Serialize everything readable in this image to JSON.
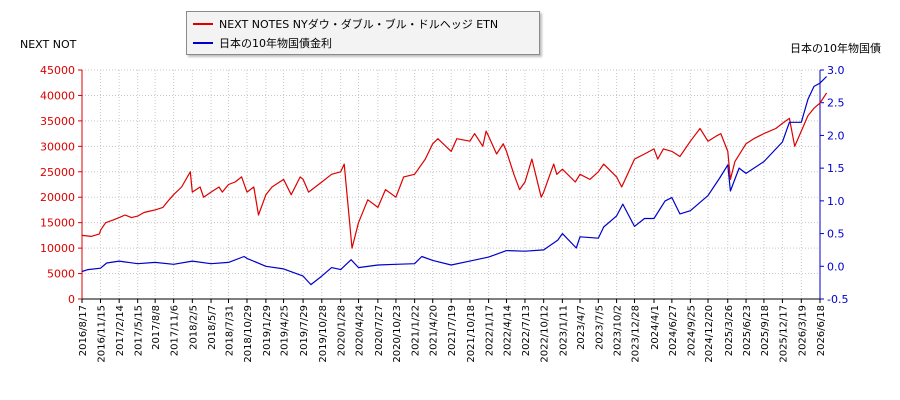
{
  "chart_data": {
    "type": "line",
    "left_axis_title": "NEXT NOT",
    "right_axis_title": "日本の10年物国債",
    "y_left": {
      "min": 0,
      "max": 45000,
      "ticks": [
        0,
        5000,
        10000,
        15000,
        20000,
        25000,
        30000,
        35000,
        40000,
        45000
      ]
    },
    "y_right": {
      "min": -0.5,
      "max": 3.0,
      "ticks": [
        "-0.5",
        "0.0",
        "0.5",
        "1.0",
        "1.5",
        "2.0",
        "2.5",
        "3.0"
      ]
    },
    "x_ticks": [
      "2016/8/17",
      "2016/11/15",
      "2017/2/14",
      "2017/5/15",
      "2017/8/8",
      "2017/11/6",
      "2018/2/5",
      "2018/5/7",
      "2018/7/31",
      "2018/10/29",
      "2019/1/29",
      "2019/4/25",
      "2019/7/29",
      "2019/10/28",
      "2020/1/28",
      "2020/4/24",
      "2020/7/27",
      "2020/10/23",
      "2021/1/22",
      "2021/4/20",
      "2021/7/19",
      "2021/10/18",
      "2022/1/17",
      "2022/4/14",
      "2022/7/13",
      "2022/10/12",
      "2023/1/11",
      "2023/4/7",
      "2023/7/5",
      "2023/10/2",
      "2023/12/28",
      "2024/4/1",
      "2024/6/27",
      "2024/9/25",
      "2024/12/20",
      "2025/3/26",
      "2025/6/23",
      "2025/9/18",
      "2025/12/17",
      "2026/3/19",
      "2026/6/18"
    ],
    "legend": [
      {
        "name": "NEXT NOTES NYダウ・ダブル・ブル・ドルヘッジ ETN",
        "color": "#dd0000"
      },
      {
        "name": "日本の10年物国債金利",
        "color": "#0000cc"
      }
    ],
    "series": [
      {
        "name": "NEXT NOTES NYダウ・ダブル・ブル・ドルヘッジ ETN",
        "axis": "left",
        "color": "#dd0000",
        "points": [
          [
            "2016/8/17",
            12500
          ],
          [
            "2016/10/1",
            12300
          ],
          [
            "2016/11/10",
            12800
          ],
          [
            "2016/11/15",
            13500
          ],
          [
            "2016/12/10",
            15000
          ],
          [
            "2017/1/15",
            15500
          ],
          [
            "2017/2/14",
            16000
          ],
          [
            "2017/3/15",
            16500
          ],
          [
            "2017/4/15",
            16000
          ],
          [
            "2017/5/15",
            16300
          ],
          [
            "2017/6/15",
            17000
          ],
          [
            "2017/7/15",
            17300
          ],
          [
            "2017/8/8",
            17500
          ],
          [
            "2017/9/15",
            18000
          ],
          [
            "2017/10/15",
            19500
          ],
          [
            "2017/11/6",
            20500
          ],
          [
            "2017/12/15",
            22000
          ],
          [
            "2018/1/26",
            25000
          ],
          [
            "2018/2/5",
            21000
          ],
          [
            "2018/3/15",
            22000
          ],
          [
            "2018/4/1",
            20000
          ],
          [
            "2018/5/7",
            21000
          ],
          [
            "2018/6/15",
            22000
          ],
          [
            "2018/7/1",
            21000
          ],
          [
            "2018/7/31",
            22500
          ],
          [
            "2018/9/1",
            23000
          ],
          [
            "2018/10/3",
            24000
          ],
          [
            "2018/10/29",
            21000
          ],
          [
            "2018/12/1",
            22000
          ],
          [
            "2018/12/24",
            16500
          ],
          [
            "2019/1/29",
            20500
          ],
          [
            "2019/2/28",
            22000
          ],
          [
            "2019/4/25",
            23500
          ],
          [
            "2019/6/1",
            20500
          ],
          [
            "2019/7/15",
            24000
          ],
          [
            "2019/7/29",
            23500
          ],
          [
            "2019/8/25",
            21000
          ],
          [
            "2019/10/28",
            23000
          ],
          [
            "2019/12/15",
            24500
          ],
          [
            "2020/1/28",
            25000
          ],
          [
            "2020/2/14",
            26500
          ],
          [
            "2020/3/23",
            10000
          ],
          [
            "2020/4/24",
            15000
          ],
          [
            "2020/6/8",
            19500
          ],
          [
            "2020/7/27",
            18000
          ],
          [
            "2020/9/2",
            21500
          ],
          [
            "2020/10/23",
            20000
          ],
          [
            "2020/11/30",
            24000
          ],
          [
            "2021/1/22",
            24500
          ],
          [
            "2021/3/15",
            27500
          ],
          [
            "2021/4/20",
            30500
          ],
          [
            "2021/5/15",
            31500
          ],
          [
            "2021/7/19",
            29000
          ],
          [
            "2021/8/15",
            31500
          ],
          [
            "2021/10/18",
            31000
          ],
          [
            "2021/11/10",
            32500
          ],
          [
            "2021/12/20",
            30000
          ],
          [
            "2022/1/5",
            33000
          ],
          [
            "2022/1/17",
            32000
          ],
          [
            "2022/2/25",
            28500
          ],
          [
            "2022/3/29",
            30500
          ],
          [
            "2022/4/14",
            29000
          ],
          [
            "2022/5/20",
            24500
          ],
          [
            "2022/6/17",
            21500
          ],
          [
            "2022/7/13",
            23000
          ],
          [
            "2022/8/16",
            27500
          ],
          [
            "2022/9/30",
            20000
          ],
          [
            "2022/10/12",
            21000
          ],
          [
            "2022/11/30",
            26500
          ],
          [
            "2022/12/15",
            24500
          ],
          [
            "2023/1/11",
            25500
          ],
          [
            "2023/3/15",
            23000
          ],
          [
            "2023/4/7",
            24500
          ],
          [
            "2023/5/25",
            23500
          ],
          [
            "2023/7/5",
            25000
          ],
          [
            "2023/7/31",
            26500
          ],
          [
            "2023/10/2",
            24000
          ],
          [
            "2023/10/27",
            22000
          ],
          [
            "2023/12/28",
            27500
          ],
          [
            "2024/2/15",
            28500
          ],
          [
            "2024/4/1",
            29500
          ],
          [
            "2024/4/19",
            27500
          ],
          [
            "2024/5/17",
            29500
          ],
          [
            "2024/6/27",
            29000
          ],
          [
            "2024/8/5",
            28000
          ],
          [
            "2024/9/25",
            31000
          ],
          [
            "2024/11/11",
            33500
          ],
          [
            "2024/12/20",
            31000
          ],
          [
            "2025/1/28",
            32000
          ],
          [
            "2025/2/20",
            32500
          ],
          [
            "2025/3/26",
            29000
          ],
          [
            "2025/4/8",
            23500
          ],
          [
            "2025/4/30",
            27000
          ],
          [
            "2025/6/23",
            30500
          ],
          [
            "2025/7/31",
            31500
          ],
          [
            "2025/9/18",
            32500
          ],
          [
            "2025/11/15",
            33500
          ],
          [
            "2025/12/17",
            34500
          ],
          [
            "2026/1/20",
            35500
          ],
          [
            "2026/2/15",
            30000
          ],
          [
            "2026/3/19",
            33000
          ],
          [
            "2026/4/20",
            36000
          ],
          [
            "2026/5/20",
            37500
          ],
          [
            "2026/6/18",
            38500
          ],
          [
            "2026/7/20",
            40500
          ]
        ]
      },
      {
        "name": "日本の10年物国債金利",
        "axis": "right",
        "color": "#0000cc",
        "points": [
          [
            "2016/8/17",
            -0.08
          ],
          [
            "2016/9/15",
            -0.05
          ],
          [
            "2016/11/15",
            -0.03
          ],
          [
            "2016/12/15",
            0.05
          ],
          [
            "2017/2/14",
            0.08
          ],
          [
            "2017/5/15",
            0.04
          ],
          [
            "2017/8/8",
            0.06
          ],
          [
            "2017/11/6",
            0.03
          ],
          [
            "2018/2/5",
            0.08
          ],
          [
            "2018/5/7",
            0.04
          ],
          [
            "2018/7/31",
            0.06
          ],
          [
            "2018/10/15",
            0.15
          ],
          [
            "2018/10/29",
            0.12
          ],
          [
            "2019/1/29",
            0.0
          ],
          [
            "2019/4/25",
            -0.04
          ],
          [
            "2019/7/29",
            -0.15
          ],
          [
            "2019/9/5",
            -0.28
          ],
          [
            "2019/10/28",
            -0.15
          ],
          [
            "2019/12/15",
            -0.02
          ],
          [
            "2020/1/28",
            -0.05
          ],
          [
            "2020/3/19",
            0.1
          ],
          [
            "2020/4/24",
            -0.02
          ],
          [
            "2020/7/27",
            0.02
          ],
          [
            "2020/10/23",
            0.03
          ],
          [
            "2021/1/22",
            0.04
          ],
          [
            "2021/2/26",
            0.15
          ],
          [
            "2021/4/20",
            0.09
          ],
          [
            "2021/7/19",
            0.02
          ],
          [
            "2021/10/18",
            0.08
          ],
          [
            "2022/1/17",
            0.14
          ],
          [
            "2022/4/14",
            0.24
          ],
          [
            "2022/7/13",
            0.23
          ],
          [
            "2022/10/12",
            0.25
          ],
          [
            "2022/12/20",
            0.4
          ],
          [
            "2023/1/11",
            0.5
          ],
          [
            "2023/3/20",
            0.28
          ],
          [
            "2023/4/7",
            0.45
          ],
          [
            "2023/7/5",
            0.43
          ],
          [
            "2023/7/31",
            0.6
          ],
          [
            "2023/10/2",
            0.77
          ],
          [
            "2023/11/1",
            0.95
          ],
          [
            "2023/12/28",
            0.61
          ],
          [
            "2024/2/15",
            0.73
          ],
          [
            "2024/4/1",
            0.73
          ],
          [
            "2024/5/25",
            1.0
          ],
          [
            "2024/6/27",
            1.05
          ],
          [
            "2024/8/5",
            0.8
          ],
          [
            "2024/9/25",
            0.85
          ],
          [
            "2024/12/20",
            1.08
          ],
          [
            "2025/2/15",
            1.35
          ],
          [
            "2025/3/26",
            1.55
          ],
          [
            "2025/4/8",
            1.15
          ],
          [
            "2025/5/20",
            1.5
          ],
          [
            "2025/6/23",
            1.42
          ],
          [
            "2025/9/18",
            1.6
          ],
          [
            "2025/12/17",
            1.9
          ],
          [
            "2026/1/20",
            2.2
          ],
          [
            "2026/3/19",
            2.2
          ],
          [
            "2026/4/20",
            2.55
          ],
          [
            "2026/5/20",
            2.75
          ],
          [
            "2026/6/18",
            2.8
          ],
          [
            "2026/7/20",
            2.9
          ]
        ]
      }
    ]
  }
}
